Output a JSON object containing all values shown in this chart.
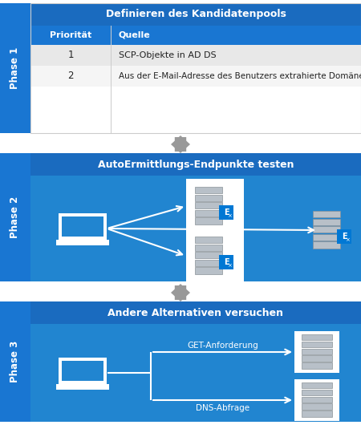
{
  "bg_color": "#ffffff",
  "blue_dark": "#1565c0",
  "blue_phase_side": "#1976d2",
  "blue_title_bar": "#1a6bbf",
  "blue_content": "#2185d0",
  "table_header_bg": "#1976d2",
  "table_row1_bg": "#e8e8e8",
  "table_row2_bg": "#f5f5f5",
  "arrow_gray": "#999999",
  "white": "#ffffff",
  "server_gray": "#b0b8c0",
  "server_dark": "#8a9298",
  "exchange_blue": "#0078d4",
  "phase1_title": "Definieren des Kandidatenpools",
  "phase2_title": "AutoErmittlungs-Endpunkte testen",
  "phase3_title": "Andere Alternativen versuchen",
  "phase1_label": "Phase 1",
  "phase2_label": "Phase 2",
  "phase3_label": "Phase 3",
  "col1_header": "Priorität",
  "col2_header": "Quelle",
  "row1_priority": "1",
  "row1_source": "SCP-Objekte in AD DS",
  "row2_priority": "2",
  "row2_source": "Aus der E-Mail-Adresse des Benutzers extrahierte Domäne",
  "get_label": "GET-Anforderung",
  "dns_label": "DNS-Abfrage",
  "figw": 4.5,
  "figh": 5.5,
  "dpi": 100
}
